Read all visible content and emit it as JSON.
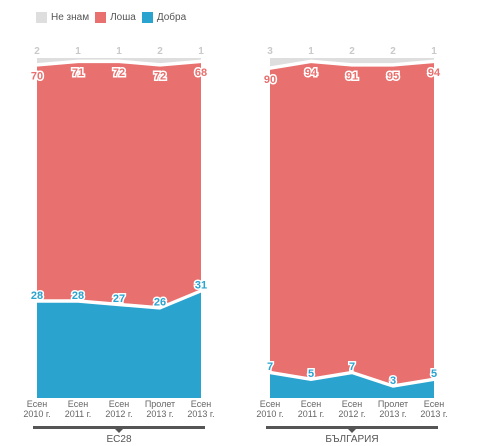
{
  "legend": [
    {
      "label": "Не знам",
      "color": "#dedede"
    },
    {
      "label": "Лоша",
      "color": "#e8706e"
    },
    {
      "label": "Добра",
      "color": "#2aa3cf"
    }
  ],
  "colors": {
    "dont_know": "#dedede",
    "bad": "#e8706e",
    "good": "#2aa3cf",
    "axis": "#555555"
  },
  "chart_data": [
    {
      "type": "area",
      "title": "ЕС28",
      "categories": [
        "Есен 2010 г.",
        "Есен 2011 г.",
        "Есен 2012 г.",
        "Пролет 2013 г.",
        "Есен 2013 г."
      ],
      "series": [
        {
          "name": "Не знам",
          "values": [
            2,
            1,
            1,
            2,
            1
          ]
        },
        {
          "name": "Лоша",
          "values": [
            70,
            71,
            72,
            72,
            68
          ]
        },
        {
          "name": "Добра",
          "values": [
            28,
            28,
            27,
            26,
            31
          ]
        }
      ],
      "stacked": true,
      "ylim": [
        0,
        100
      ]
    },
    {
      "type": "area",
      "title": "БЪЛГАРИЯ",
      "categories": [
        "Есен 2010 г.",
        "Есен 2011 г.",
        "Есен 2012 г.",
        "Пролет 2013 г.",
        "Есен 2013 г."
      ],
      "series": [
        {
          "name": "Не знам",
          "values": [
            3,
            1,
            2,
            2,
            1
          ]
        },
        {
          "name": "Лоша",
          "values": [
            90,
            94,
            91,
            95,
            94
          ]
        },
        {
          "name": "Добра",
          "values": [
            7,
            5,
            7,
            3,
            5
          ]
        }
      ],
      "stacked": true,
      "ylim": [
        0,
        100
      ]
    }
  ]
}
